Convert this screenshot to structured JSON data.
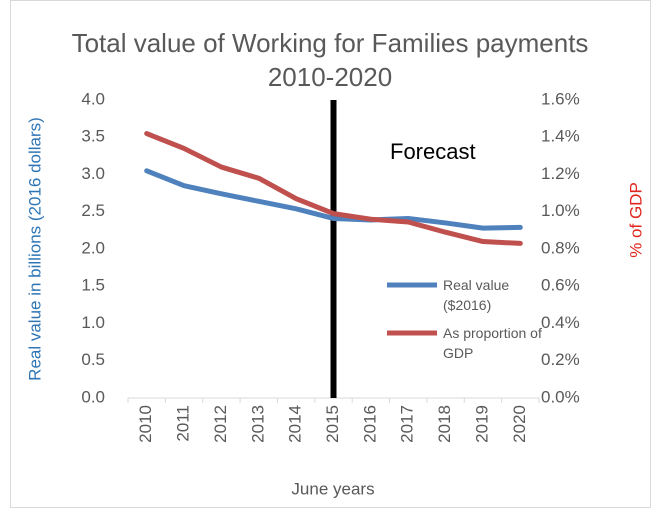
{
  "chart_data": {
    "type": "line",
    "title": "Total value of Working for Families payments 2010-2020",
    "x_label": "June years",
    "y_label": "Real value in billions (2016 dollars)",
    "y2_label": "% of GDP",
    "categories": [
      "2010",
      "2011",
      "2012",
      "2013",
      "2014",
      "2015",
      "2016",
      "2017",
      "2018",
      "2019",
      "2020"
    ],
    "series": [
      {
        "name": "Real value ($2016)",
        "color": "#4f81bd",
        "values": [
          3.05,
          2.85,
          2.74,
          2.64,
          2.54,
          2.41,
          2.39,
          2.41,
          2.35,
          2.28,
          2.29
        ]
      },
      {
        "name": "As proportion of GDP",
        "color": "#c0504d",
        "axis": "y2",
        "values": [
          1.42,
          1.34,
          1.24,
          1.18,
          1.07,
          0.99,
          0.96,
          0.945,
          0.89,
          0.84,
          0.83
        ]
      }
    ],
    "ylim": [
      0,
      4
    ],
    "yticks": [
      {
        "value": 0,
        "label": "0.0"
      },
      0.5,
      {
        "value": 1,
        "label": "1.0"
      },
      1.5,
      {
        "value": 2,
        "label": "2.0"
      },
      2.5,
      {
        "value": 3,
        "label": "3.0"
      },
      3.5,
      {
        "value": 4,
        "label": "4.0"
      }
    ],
    "y2lim": [
      0,
      1.6
    ],
    "y2ticks": [
      {
        "value": 0,
        "label": "0.0%"
      },
      {
        "value": 0.2,
        "label": "0.2%"
      },
      {
        "value": 0.4,
        "label": "0.4%"
      },
      {
        "value": 0.6,
        "label": "0.6%"
      },
      {
        "value": 0.8,
        "label": "0.8%"
      },
      {
        "value": 1.0,
        "label": "1.0%"
      },
      {
        "value": 1.2,
        "label": "1.2%"
      },
      {
        "value": 1.4,
        "label": "1.4%"
      },
      {
        "value": 1.6,
        "label": "1.6%"
      }
    ],
    "annotation": {
      "text": "Forecast",
      "category": "2015"
    },
    "grid": false,
    "legend": "right"
  }
}
